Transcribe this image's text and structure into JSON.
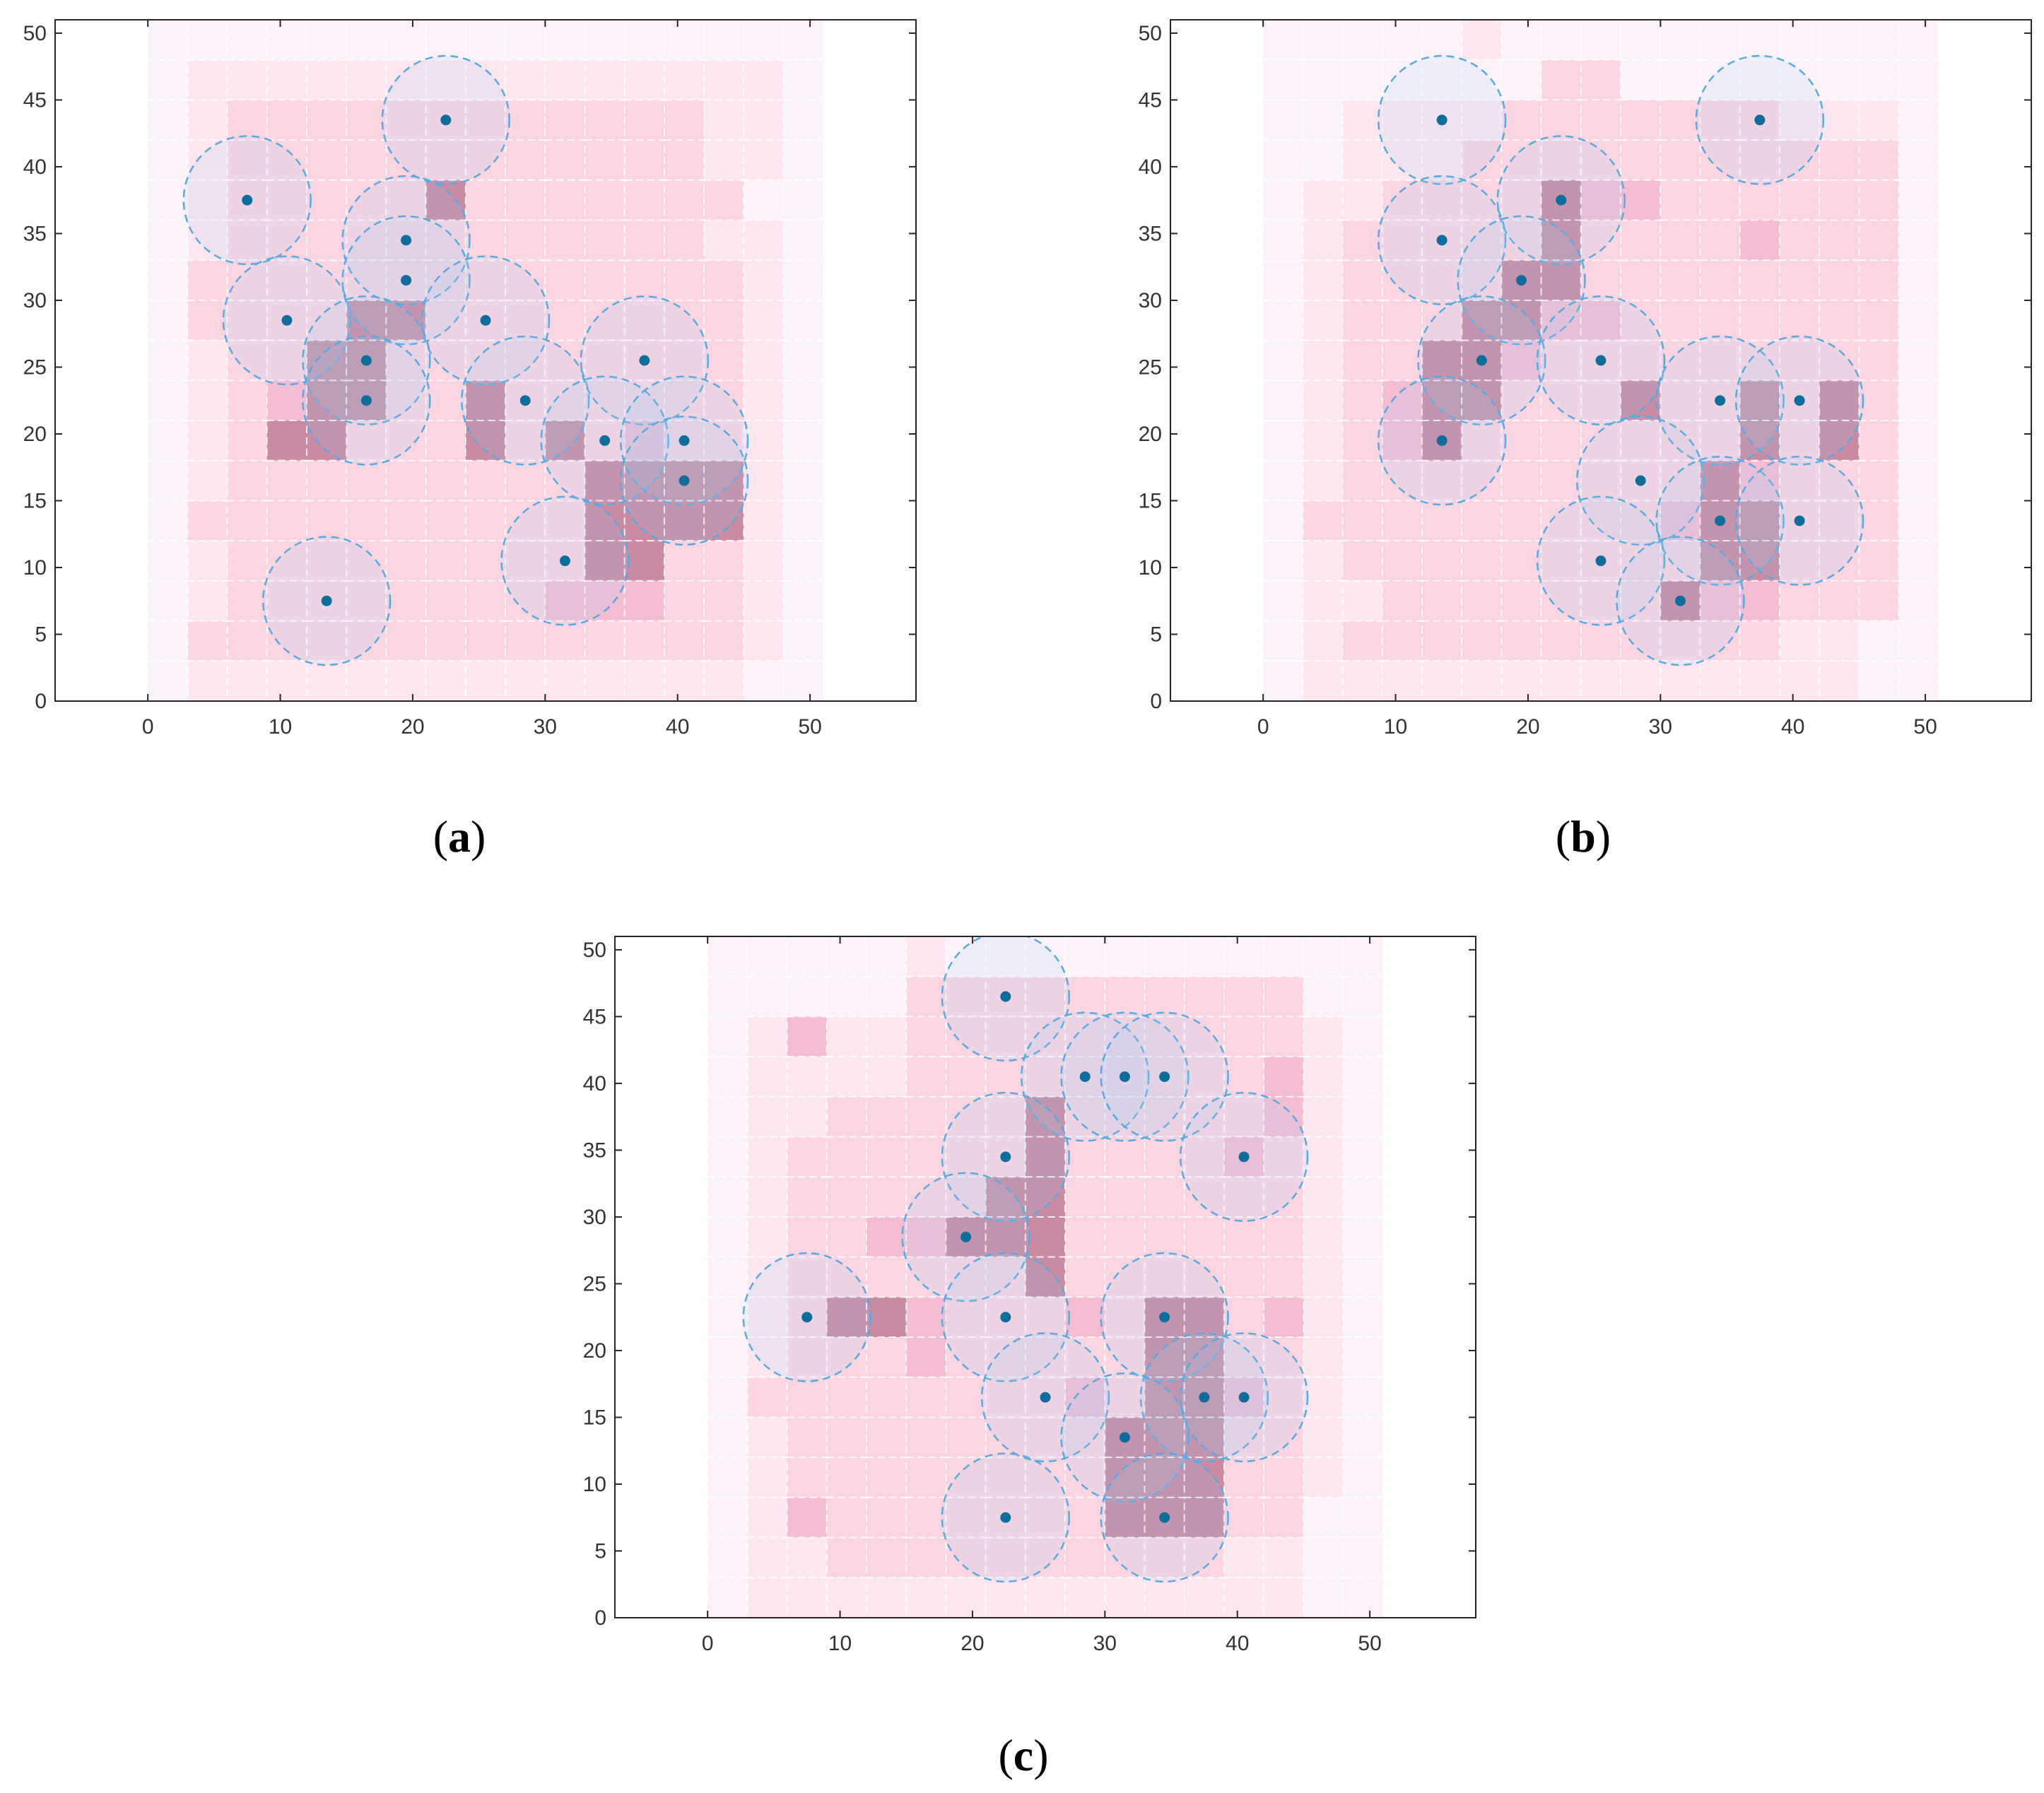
{
  "figure": {
    "colors": {
      "frame": "#262626",
      "tick_text": "#333333",
      "cell_palette": [
        "#fbf3f9",
        "#fde6f0",
        "#fcd5e3",
        "#f4bdd3",
        "#c98aa3"
      ],
      "sensor_fill": "#a8cef2",
      "sensor_edge": "#5aa9de",
      "sensor_node": "#0f6d9c"
    }
  },
  "chart_data": [
    {
      "id": "a",
      "type": "heatmap",
      "caption": {
        "open": "(",
        "letter": "a",
        "close": ")"
      },
      "xlim": [
        -7,
        58
      ],
      "ylim": [
        0,
        51
      ],
      "xticks": [
        "0",
        "10",
        "20",
        "30",
        "40",
        "50"
      ],
      "yticks": [
        "0",
        "5",
        "10",
        "15",
        "20",
        "25",
        "30",
        "35",
        "40",
        "45",
        "50"
      ],
      "grid_cell_size": 3,
      "sensing_radius": 4.8,
      "intensity_rows_top_to_bottom": [
        "00000000000000000",
        "01111111111111110",
        "01222222222222110",
        "01222222222222110",
        "01222224222222200",
        "01222222222222110",
        "02222222222222210",
        "02222442222222210",
        "01224422222222210",
        "01234422422222210",
        "01244222424232210",
        "01222222222444410",
        "02222222222444410",
        "01222222222442210",
        "01222222223332210",
        "02222222222222210",
        "01111111111111100"
      ],
      "sensors": [
        {
          "x": 7.5,
          "y": 37.5
        },
        {
          "x": 22.5,
          "y": 43.5
        },
        {
          "x": 10.5,
          "y": 28.5
        },
        {
          "x": 19.5,
          "y": 34.5
        },
        {
          "x": 19.5,
          "y": 31.5
        },
        {
          "x": 25.5,
          "y": 28.5
        },
        {
          "x": 16.5,
          "y": 25.5
        },
        {
          "x": 16.5,
          "y": 22.5
        },
        {
          "x": 28.5,
          "y": 22.5
        },
        {
          "x": 37.5,
          "y": 25.5
        },
        {
          "x": 34.5,
          "y": 19.5
        },
        {
          "x": 40.5,
          "y": 19.5
        },
        {
          "x": 40.5,
          "y": 16.5
        },
        {
          "x": 31.5,
          "y": 10.5
        },
        {
          "x": 13.5,
          "y": 7.5
        }
      ]
    },
    {
      "id": "b",
      "type": "heatmap",
      "caption": {
        "open": "(",
        "letter": "b",
        "close": ")"
      },
      "xlim": [
        -7,
        58
      ],
      "ylim": [
        0,
        51
      ],
      "xticks": [
        "0",
        "10",
        "20",
        "30",
        "40",
        "50"
      ],
      "yticks": [
        "0",
        "5",
        "10",
        "15",
        "20",
        "25",
        "30",
        "35",
        "40",
        "45",
        "50"
      ],
      "grid_cell_size": 3,
      "sensing_radius": 4.8,
      "intensity_rows_top_to_bottom": [
        "00000100000000000",
        "00000002200000000",
        "00111122222221110",
        "00111222222222220",
        "01122224332222220",
        "01222224222232220",
        "01222244222222220",
        "01222443322222220",
        "01224432222222220",
        "01234422242242420",
        "01234222222242420",
        "01222222222432220",
        "02222222223442220",
        "01222222222442220",
        "01122222224332220",
        "01222222222221100",
        "01111111111111100"
      ],
      "sensors": [
        {
          "x": 13.5,
          "y": 43.5
        },
        {
          "x": 37.5,
          "y": 43.5
        },
        {
          "x": 22.5,
          "y": 37.5
        },
        {
          "x": 13.5,
          "y": 34.5
        },
        {
          "x": 19.5,
          "y": 31.5
        },
        {
          "x": 16.5,
          "y": 25.5
        },
        {
          "x": 25.5,
          "y": 25.5
        },
        {
          "x": 34.5,
          "y": 22.5
        },
        {
          "x": 40.5,
          "y": 22.5
        },
        {
          "x": 13.5,
          "y": 19.5
        },
        {
          "x": 28.5,
          "y": 16.5
        },
        {
          "x": 34.5,
          "y": 13.5
        },
        {
          "x": 40.5,
          "y": 13.5
        },
        {
          "x": 25.5,
          "y": 10.5
        },
        {
          "x": 31.5,
          "y": 7.5
        }
      ]
    },
    {
      "id": "c",
      "type": "heatmap",
      "caption": {
        "open": "(",
        "letter": "c",
        "close": ")"
      },
      "xlim": [
        -7,
        58
      ],
      "ylim": [
        0,
        51
      ],
      "xticks": [
        "0",
        "10",
        "20",
        "30",
        "40",
        "50"
      ],
      "yticks": [
        "0",
        "5",
        "10",
        "15",
        "20",
        "25",
        "30",
        "35",
        "40",
        "45",
        "50"
      ],
      "grid_cell_size": 3,
      "sensing_radius": 4.8,
      "intensity_rows_top_to_bottom": [
        "00000100000000000",
        "00000222222222200",
        "01311222222222210",
        "01111222222222310",
        "01122222422222310",
        "01222222422223210",
        "01222224422222210",
        "01223344422222210",
        "01222222422222210",
        "01244322232442310",
        "01222322222442210",
        "02222222232443210",
        "01222222224442210",
        "01222222224442210",
        "01322222224442200",
        "01122222222221100",
        "01111111111111100"
      ],
      "sensors": [
        {
          "x": 22.5,
          "y": 46.5
        },
        {
          "x": 28.5,
          "y": 40.5
        },
        {
          "x": 31.5,
          "y": 40.5
        },
        {
          "x": 34.5,
          "y": 40.5
        },
        {
          "x": 22.5,
          "y": 34.5
        },
        {
          "x": 40.5,
          "y": 34.5
        },
        {
          "x": 19.5,
          "y": 28.5
        },
        {
          "x": 7.5,
          "y": 22.5
        },
        {
          "x": 22.5,
          "y": 22.5
        },
        {
          "x": 34.5,
          "y": 22.5
        },
        {
          "x": 25.5,
          "y": 16.5
        },
        {
          "x": 37.5,
          "y": 16.5
        },
        {
          "x": 40.5,
          "y": 16.5
        },
        {
          "x": 31.5,
          "y": 13.5
        },
        {
          "x": 22.5,
          "y": 7.5
        },
        {
          "x": 34.5,
          "y": 7.5
        }
      ]
    }
  ]
}
